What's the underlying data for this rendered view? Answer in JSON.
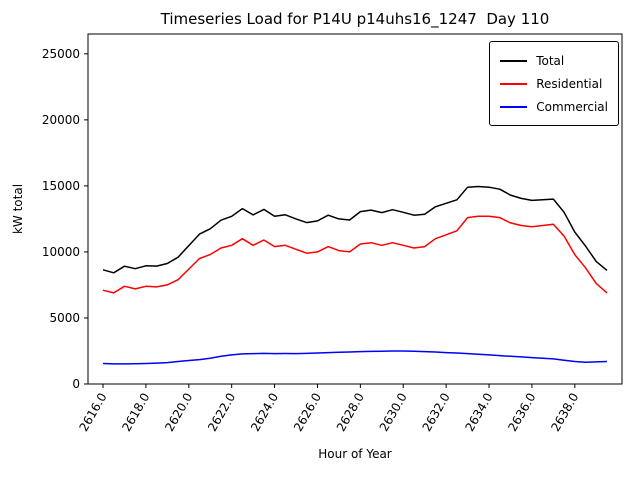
{
  "chart_data": {
    "type": "line",
    "title": "Timeseries Load for P14U p14uhs16_1247  Day 110",
    "xlabel": "Hour of Year",
    "ylabel": "kW total",
    "xlim": [
      2615.3,
      2640.2
    ],
    "ylim": [
      0,
      26500
    ],
    "grid": false,
    "legend_position": "upper right",
    "xticks": {
      "values": [
        2616,
        2618,
        2620,
        2622,
        2624,
        2626,
        2628,
        2630,
        2632,
        2634,
        2636,
        2638
      ],
      "labels": [
        "2616.0",
        "2618.0",
        "2620.0",
        "2622.0",
        "2624.0",
        "2626.0",
        "2628.0",
        "2630.0",
        "2632.0",
        "2634.0",
        "2636.0",
        "2638.0"
      ]
    },
    "yticks": {
      "values": [
        0,
        5000,
        10000,
        15000,
        20000,
        25000
      ],
      "labels": [
        "0",
        "5000",
        "10000",
        "15000",
        "20000",
        "25000"
      ]
    },
    "x": [
      2616.0,
      2616.5,
      2617.0,
      2617.5,
      2618.0,
      2618.5,
      2619.0,
      2619.5,
      2620.0,
      2620.5,
      2621.0,
      2621.5,
      2622.0,
      2622.5,
      2623.0,
      2623.5,
      2624.0,
      2624.5,
      2625.0,
      2625.5,
      2626.0,
      2626.5,
      2627.0,
      2627.5,
      2628.0,
      2628.5,
      2629.0,
      2629.5,
      2630.0,
      2630.5,
      2631.0,
      2631.5,
      2632.0,
      2632.5,
      2633.0,
      2633.5,
      2634.0,
      2634.5,
      2635.0,
      2635.5,
      2636.0,
      2636.5,
      2637.0,
      2637.5,
      2638.0,
      2638.5,
      2639.0,
      2639.5
    ],
    "series": [
      {
        "name": "Total",
        "color": "#000000",
        "values": [
          8650,
          8420,
          8920,
          8730,
          8950,
          8930,
          9120,
          9600,
          10480,
          11350,
          11750,
          12400,
          12700,
          13280,
          12800,
          13220,
          12700,
          12810,
          12500,
          12220,
          12350,
          12780,
          12500,
          12420,
          13050,
          13170,
          12980,
          13200,
          13000,
          12780,
          12850,
          13420,
          13680,
          13950,
          14900,
          14950,
          14900,
          14750,
          14300,
          14050,
          13900,
          13950,
          14000,
          13000,
          11500,
          10450,
          9270,
          8600
        ]
      },
      {
        "name": "Residential",
        "color": "#ff0000",
        "values": [
          7100,
          6900,
          7400,
          7200,
          7400,
          7350,
          7500,
          7900,
          8700,
          9500,
          9800,
          10300,
          10500,
          11000,
          10500,
          10900,
          10400,
          10500,
          10200,
          9900,
          10000,
          10400,
          10100,
          10000,
          10600,
          10700,
          10500,
          10700,
          10500,
          10300,
          10400,
          11000,
          11300,
          11600,
          12600,
          12700,
          12700,
          12600,
          12200,
          12000,
          11900,
          12000,
          12100,
          11200,
          9800,
          8800,
          7600,
          6900
        ]
      },
      {
        "name": "Commercial",
        "color": "#0000ff",
        "values": [
          1550,
          1520,
          1520,
          1530,
          1550,
          1580,
          1620,
          1700,
          1780,
          1850,
          1950,
          2100,
          2200,
          2280,
          2300,
          2320,
          2300,
          2310,
          2300,
          2320,
          2350,
          2380,
          2400,
          2420,
          2450,
          2470,
          2480,
          2500,
          2500,
          2480,
          2450,
          2420,
          2380,
          2350,
          2300,
          2250,
          2200,
          2150,
          2100,
          2050,
          2000,
          1950,
          1900,
          1800,
          1700,
          1650,
          1670,
          1700
        ]
      }
    ]
  }
}
